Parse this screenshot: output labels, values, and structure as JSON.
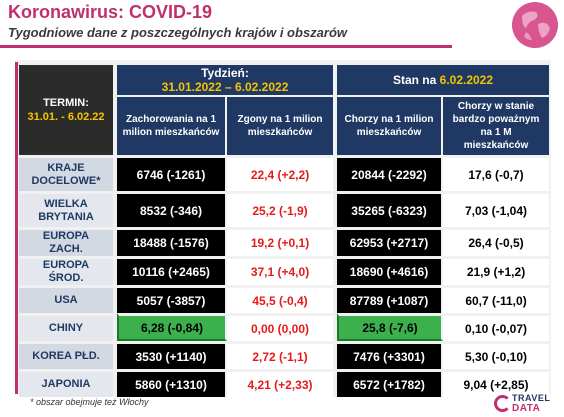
{
  "header": {
    "title": "Koronawirus: COVID-19",
    "subtitle": "Tygodniowe dane z poszczególnych krajów i obszarów"
  },
  "table": {
    "termin_label": "TERMIN:",
    "termin_range": "31.01. - 6.02.22",
    "week_label": "Tydzień:",
    "week_range": "31.01.2022 – 6.02.2022",
    "state_label": "Stan na",
    "state_date": "6.02.2022",
    "columns": [
      "Zachorowania na 1 milion mieszkańców",
      "Zgony na 1 milion mieszkańców",
      "Chorzy na 1 milion mieszkańców",
      "Chorzy w stanie bardzo poważnym na 1 M mieszkańców"
    ],
    "rows": [
      {
        "country": "KRAJE DOCELOWE*",
        "cases": "6746 (-1261)",
        "deaths": "22,4 (+2,2)",
        "sick": "20844 (-2292)",
        "severe": "17,6 (-0,7)"
      },
      {
        "country": "WIELKA BRYTANIA",
        "cases": "8532 (-346)",
        "deaths": "25,2 (-1,9)",
        "sick": "35265 (-6323)",
        "severe": "7,03 (-1,04)"
      },
      {
        "country": "EUROPA ZACH.",
        "cases": "18488 (-1576)",
        "deaths": "19,2 (+0,1)",
        "sick": "62953 (+2717)",
        "severe": "26,4 (-0,5)"
      },
      {
        "country": "EUROPA ŚROD.",
        "cases": "10116 (+2465)",
        "deaths": "37,1 (+4,0)",
        "sick": "18690 (+4616)",
        "severe": "21,9 (+1,2)"
      },
      {
        "country": "USA",
        "cases": "5057 (-3857)",
        "deaths": "45,5 (-0,4)",
        "sick": "87789 (+1087)",
        "severe": "60,7 (-11,0)"
      },
      {
        "country": "CHINY",
        "cases": "6,28 (-0,84)",
        "deaths": "0,00 (0,00)",
        "sick": "25,8 (-7,6)",
        "severe": "0,10 (-0,07)"
      },
      {
        "country": "KOREA PŁD.",
        "cases": "3530 (+1140)",
        "deaths": "2,72 (-1,1)",
        "sick": "7476 (+3301)",
        "severe": "5,30 (-0,10)"
      },
      {
        "country": "JAPONIA",
        "cases": "5860 (+1310)",
        "deaths": "4,21 (+2,33)",
        "sick": "6572 (+1782)",
        "severe": "9,04 (+2,85)"
      }
    ]
  },
  "footer": {
    "note": "* obszar obejmuje też Włochy",
    "brand_line1": "TRAVEL",
    "brand_line2": "DATA"
  },
  "colors": {
    "accent": "#c0306e",
    "header_navy": "#1f3964",
    "gold": "#f5c400",
    "negative_red": "#e51b1b",
    "highlight_green": "#3cb04d"
  }
}
